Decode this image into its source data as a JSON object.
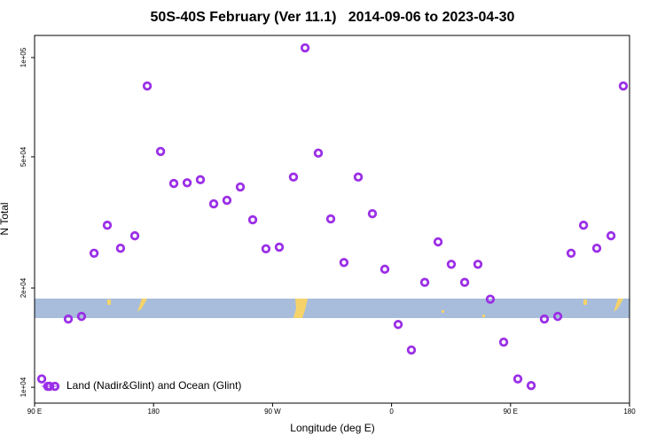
{
  "chart_data": {
    "type": "scatter",
    "title": "50S-40S February (Ver 11.1)   2014-09-06 to 2023-04-30",
    "xlabel": "Longitude (deg E)",
    "ylabel": "N Total",
    "xlim": [
      90,
      540
    ],
    "ylim": [
      8950,
      116700
    ],
    "ylog": true,
    "xticks": [
      {
        "value": 90,
        "label": "90 E"
      },
      180,
      {
        "value": 270,
        "label": "90 W"
      },
      {
        "value": 360,
        "label": "0"
      },
      {
        "value": 450,
        "label": "90 E"
      },
      {
        "value": 540,
        "label": "180"
      }
    ],
    "yticks": [
      {
        "value": 10000,
        "label": "1e+04"
      },
      {
        "value": 20000,
        "label": "2e+04"
      },
      {
        "value": 50000,
        "label": "5e+04"
      },
      {
        "value": 100000,
        "label": "1e+05"
      }
    ],
    "legend": "bottom-left",
    "series": [
      {
        "name": "Land (Nadir&Glint) and Ocean (Glint)",
        "color": "#9b2fe6",
        "x": [
          95.4,
          100.0,
          105.4,
          115.5,
          125.5,
          135.0,
          145.0,
          155.0,
          165.8,
          175.2,
          185.3,
          195.3,
          205.4,
          215.4,
          225.5,
          235.5,
          245.6,
          255.0,
          265.0,
          275.1,
          285.8,
          294.6,
          304.6,
          314.0,
          324.0,
          334.8,
          345.5,
          354.9,
          365.0,
          375.0,
          385.1,
          395.2,
          405.2,
          415.3,
          425.3,
          434.7,
          444.8,
          455.5,
          465.6,
          475.6,
          485.7,
          495.8,
          505.2,
          515.2,
          526.0,
          535.3
        ],
        "values": [
          10600,
          10060,
          10060,
          16100,
          16400,
          25500,
          31000,
          26400,
          28800,
          82000,
          51900,
          41500,
          41700,
          42600,
          36000,
          36900,
          40500,
          32200,
          26300,
          26600,
          43400,
          107000,
          51300,
          32400,
          23900,
          43400,
          33600,
          22800,
          15500,
          12970,
          20800,
          27600,
          23600,
          20800,
          23600,
          18500,
          13700,
          10600,
          10120,
          16100,
          16400,
          25500,
          31000,
          26400,
          28800,
          82000
        ]
      }
    ]
  }
}
